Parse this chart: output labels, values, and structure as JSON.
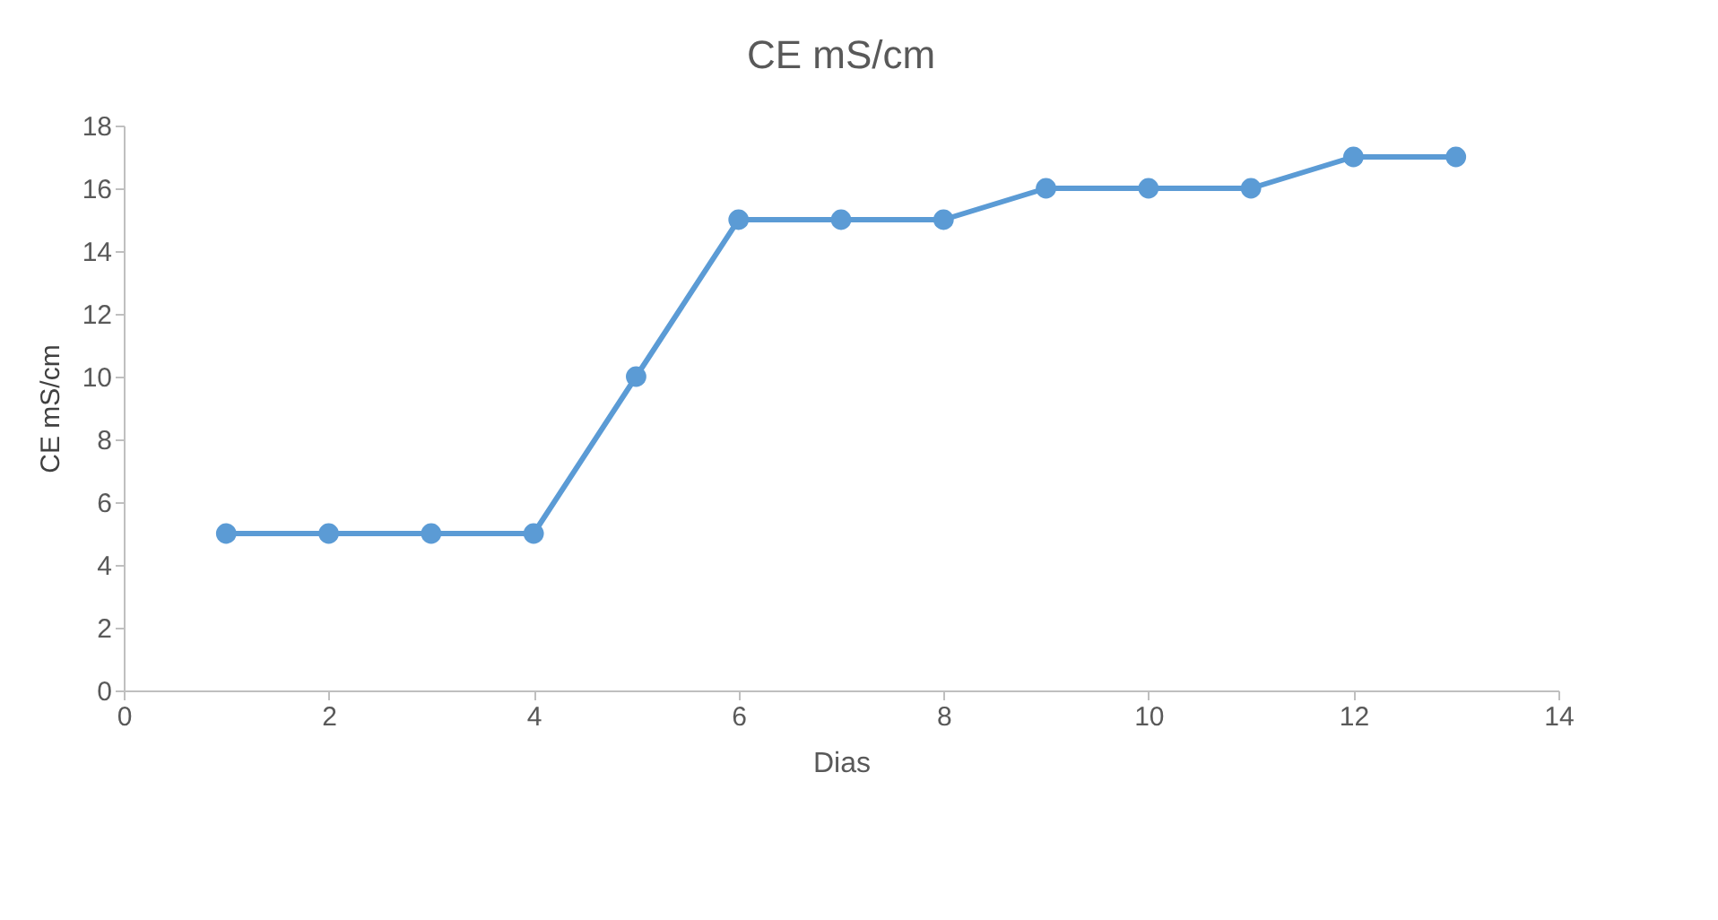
{
  "chart_data": {
    "type": "line",
    "title": "CE  mS/cm",
    "xlabel": "Dias",
    "ylabel": "CE mS/cm",
    "x": [
      1,
      2,
      3,
      4,
      5,
      6,
      7,
      8,
      9,
      10,
      11,
      12,
      13
    ],
    "series": [
      {
        "color": "#5b9bd5",
        "values": [
          5,
          5,
          5,
          5,
          10,
          15,
          15,
          15,
          16,
          16,
          16,
          17,
          17
        ]
      }
    ],
    "xlim": [
      0,
      14
    ],
    "xticks": [
      0,
      2,
      4,
      6,
      8,
      10,
      12,
      14
    ],
    "ylim": [
      0,
      18
    ],
    "yticks": [
      0,
      2,
      4,
      6,
      8,
      10,
      12,
      14,
      16,
      18
    ],
    "grid": false,
    "marker": "circle",
    "line_style": "solid"
  }
}
